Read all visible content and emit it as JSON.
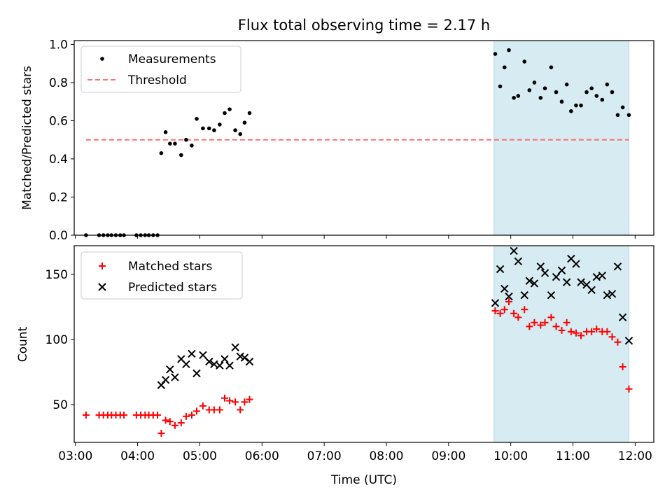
{
  "title": "Flux total observing time = 2.17 h",
  "colors": {
    "span": "#add8e6",
    "threshold": "#ff7070",
    "measurement": "#000000",
    "matched": "#ff0000",
    "predicted": "#000000"
  },
  "chart_data": [
    {
      "type": "scatter",
      "title": "Flux total observing time = 2.17 h",
      "xlabel": "",
      "ylabel": "Matched/Predicted stars",
      "x_unit": "hours UTC",
      "xlim": [
        2.98,
        12.3
      ],
      "ylim": [
        0.0,
        1.02
      ],
      "yticks": [
        "0.0",
        "0.2",
        "0.4",
        "0.6",
        "0.8",
        "1.0"
      ],
      "legend_position": "upper-left",
      "highlight_span": [
        9.73,
        11.9
      ],
      "series": [
        {
          "name": "Measurements",
          "marker": "dot",
          "points": [
            [
              3.17,
              0.0
            ],
            [
              3.38,
              0.0
            ],
            [
              3.45,
              0.0
            ],
            [
              3.52,
              0.0
            ],
            [
              3.58,
              0.0
            ],
            [
              3.65,
              0.0
            ],
            [
              3.72,
              0.0
            ],
            [
              3.78,
              0.0
            ],
            [
              3.98,
              0.0
            ],
            [
              4.05,
              0.0
            ],
            [
              4.12,
              0.0
            ],
            [
              4.18,
              0.0
            ],
            [
              4.25,
              0.0
            ],
            [
              4.32,
              0.0
            ],
            [
              4.38,
              0.43
            ],
            [
              4.45,
              0.54
            ],
            [
              4.52,
              0.48
            ],
            [
              4.6,
              0.48
            ],
            [
              4.7,
              0.42
            ],
            [
              4.78,
              0.5
            ],
            [
              4.87,
              0.47
            ],
            [
              4.95,
              0.61
            ],
            [
              5.05,
              0.56
            ],
            [
              5.15,
              0.56
            ],
            [
              5.23,
              0.55
            ],
            [
              5.32,
              0.58
            ],
            [
              5.4,
              0.64
            ],
            [
              5.48,
              0.66
            ],
            [
              5.57,
              0.55
            ],
            [
              5.65,
              0.53
            ],
            [
              5.72,
              0.59
            ],
            [
              5.8,
              0.64
            ],
            [
              9.75,
              0.95
            ],
            [
              9.83,
              0.78
            ],
            [
              9.9,
              0.88
            ],
            [
              9.97,
              0.97
            ],
            [
              10.05,
              0.72
            ],
            [
              10.12,
              0.73
            ],
            [
              10.22,
              0.91
            ],
            [
              10.3,
              0.76
            ],
            [
              10.38,
              0.8
            ],
            [
              10.48,
              0.72
            ],
            [
              10.55,
              0.77
            ],
            [
              10.65,
              0.88
            ],
            [
              10.73,
              0.75
            ],
            [
              10.82,
              0.7
            ],
            [
              10.9,
              0.79
            ],
            [
              10.97,
              0.65
            ],
            [
              11.05,
              0.68
            ],
            [
              11.13,
              0.68
            ],
            [
              11.22,
              0.75
            ],
            [
              11.3,
              0.77
            ],
            [
              11.38,
              0.73
            ],
            [
              11.47,
              0.71
            ],
            [
              11.55,
              0.79
            ],
            [
              11.63,
              0.75
            ],
            [
              11.72,
              0.63
            ],
            [
              11.8,
              0.67
            ],
            [
              11.9,
              0.63
            ]
          ]
        },
        {
          "name": "Threshold",
          "style": "dashed-line",
          "points": [
            [
              3.17,
              0.5
            ],
            [
              11.9,
              0.5
            ]
          ]
        }
      ]
    },
    {
      "type": "scatter",
      "title": "",
      "xlabel": "Time (UTC)",
      "ylabel": "Count",
      "x_unit": "hours UTC",
      "xlim": [
        2.98,
        12.3
      ],
      "ylim": [
        21,
        172
      ],
      "yticks": [
        "50",
        "100",
        "150"
      ],
      "xticks": [
        "03:00",
        "04:00",
        "05:00",
        "06:00",
        "07:00",
        "08:00",
        "09:00",
        "10:00",
        "11:00",
        "12:00"
      ],
      "legend_position": "upper-left",
      "highlight_span": [
        9.73,
        11.9
      ],
      "series": [
        {
          "name": "Matched stars",
          "marker": "plus",
          "points": [
            [
              3.17,
              42
            ],
            [
              3.38,
              42
            ],
            [
              3.45,
              42
            ],
            [
              3.52,
              42
            ],
            [
              3.58,
              42
            ],
            [
              3.65,
              42
            ],
            [
              3.72,
              42
            ],
            [
              3.78,
              42
            ],
            [
              3.98,
              42
            ],
            [
              4.05,
              42
            ],
            [
              4.12,
              42
            ],
            [
              4.18,
              42
            ],
            [
              4.25,
              42
            ],
            [
              4.32,
              42
            ],
            [
              4.38,
              28
            ],
            [
              4.45,
              38
            ],
            [
              4.52,
              37
            ],
            [
              4.6,
              34
            ],
            [
              4.7,
              36
            ],
            [
              4.78,
              41
            ],
            [
              4.87,
              42
            ],
            [
              4.95,
              45
            ],
            [
              5.05,
              49
            ],
            [
              5.15,
              46
            ],
            [
              5.23,
              46
            ],
            [
              5.32,
              46
            ],
            [
              5.4,
              55
            ],
            [
              5.48,
              53
            ],
            [
              5.57,
              52
            ],
            [
              5.65,
              46
            ],
            [
              5.72,
              52
            ],
            [
              5.8,
              54
            ],
            [
              9.75,
              122
            ],
            [
              9.83,
              120
            ],
            [
              9.9,
              123
            ],
            [
              9.97,
              129
            ],
            [
              10.05,
              120
            ],
            [
              10.12,
              117
            ],
            [
              10.22,
              123
            ],
            [
              10.3,
              110
            ],
            [
              10.38,
              113
            ],
            [
              10.48,
              111
            ],
            [
              10.55,
              113
            ],
            [
              10.65,
              117
            ],
            [
              10.73,
              110
            ],
            [
              10.82,
              107
            ],
            [
              10.9,
              113
            ],
            [
              10.97,
              106
            ],
            [
              11.05,
              105
            ],
            [
              11.13,
              103
            ],
            [
              11.22,
              106
            ],
            [
              11.3,
              106
            ],
            [
              11.38,
              108
            ],
            [
              11.47,
              106
            ],
            [
              11.55,
              106
            ],
            [
              11.63,
              102
            ],
            [
              11.72,
              98
            ],
            [
              11.8,
              79
            ],
            [
              11.9,
              62
            ]
          ]
        },
        {
          "name": "Predicted stars",
          "marker": "x",
          "points": [
            [
              4.38,
              65
            ],
            [
              4.45,
              69
            ],
            [
              4.52,
              77
            ],
            [
              4.6,
              71
            ],
            [
              4.7,
              85
            ],
            [
              4.78,
              81
            ],
            [
              4.87,
              89
            ],
            [
              4.95,
              74
            ],
            [
              5.05,
              88
            ],
            [
              5.15,
              83
            ],
            [
              5.23,
              81
            ],
            [
              5.32,
              80
            ],
            [
              5.4,
              85
            ],
            [
              5.48,
              80
            ],
            [
              5.57,
              94
            ],
            [
              5.65,
              87
            ],
            [
              5.72,
              86
            ],
            [
              5.8,
              83
            ],
            [
              9.75,
              128
            ],
            [
              9.83,
              154
            ],
            [
              9.9,
              139
            ],
            [
              9.97,
              133
            ],
            [
              10.05,
              168
            ],
            [
              10.12,
              160
            ],
            [
              10.22,
              134
            ],
            [
              10.3,
              145
            ],
            [
              10.38,
              143
            ],
            [
              10.48,
              156
            ],
            [
              10.55,
              151
            ],
            [
              10.65,
              134
            ],
            [
              10.73,
              148
            ],
            [
              10.82,
              153
            ],
            [
              10.9,
              144
            ],
            [
              10.97,
              162
            ],
            [
              11.05,
              158
            ],
            [
              11.13,
              144
            ],
            [
              11.22,
              142
            ],
            [
              11.3,
              138
            ],
            [
              11.38,
              148
            ],
            [
              11.47,
              149
            ],
            [
              11.55,
              134
            ],
            [
              11.63,
              135
            ],
            [
              11.72,
              156
            ],
            [
              11.8,
              117
            ],
            [
              11.9,
              99
            ]
          ]
        }
      ]
    }
  ]
}
